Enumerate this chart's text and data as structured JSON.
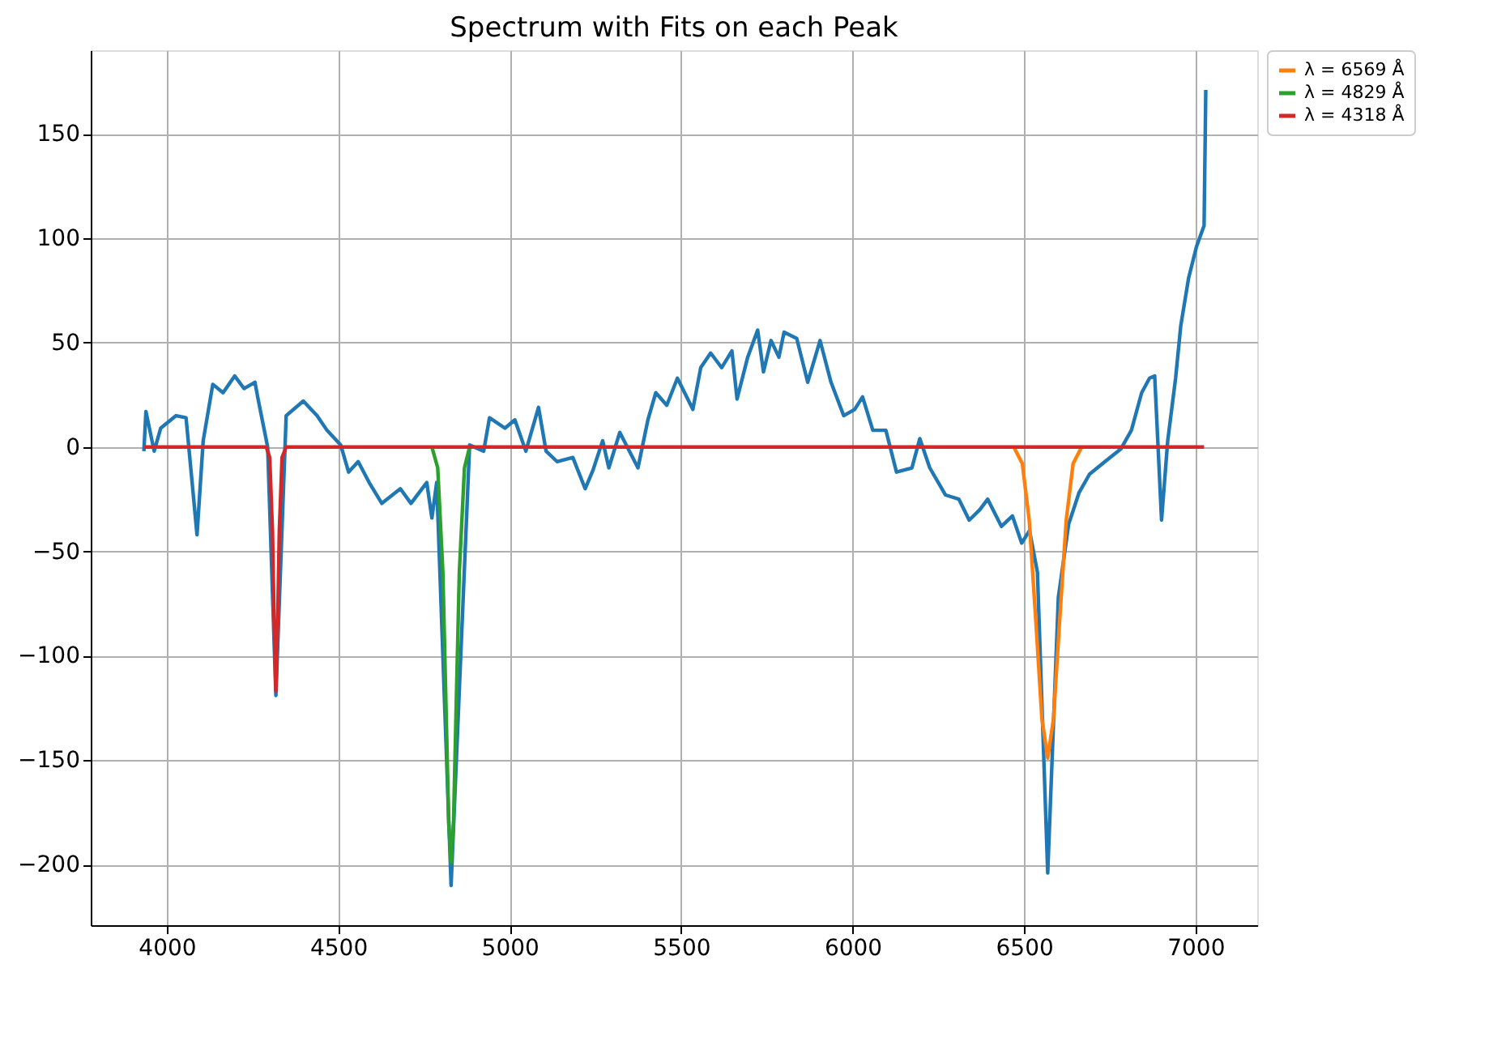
{
  "chart_data": {
    "type": "line",
    "title": "Spectrum with Fits on each Peak",
    "xlim": [
      3778,
      7180
    ],
    "xticks": [
      4000,
      4500,
      5000,
      5500,
      6000,
      6500,
      7000
    ],
    "ylim": [
      -229,
      190
    ],
    "yticks": [
      -200,
      -150,
      -100,
      -50,
      0,
      50,
      100,
      150
    ],
    "grid": true,
    "legend": "right",
    "marker": "none",
    "line_style": "solid",
    "series": [
      {
        "color": "#1f77b4",
        "x": [
          3933,
          3939,
          3963,
          3982,
          4027,
          4056,
          4088,
          4106,
          4134,
          4164,
          4198,
          4225,
          4257,
          4266,
          4294,
          4318,
          4348,
          4398,
          4438,
          4467,
          4507,
          4530,
          4558,
          4590,
          4627,
          4681,
          4712,
          4758,
          4773,
          4787,
          4829,
          4883,
          4924,
          4941,
          4986,
          5015,
          5047,
          5084,
          5106,
          5138,
          5184,
          5220,
          5243,
          5271,
          5289,
          5321,
          5374,
          5403,
          5426,
          5458,
          5489,
          5534,
          5557,
          5586,
          5618,
          5648,
          5663,
          5694,
          5723,
          5740,
          5762,
          5785,
          5800,
          5837,
          5869,
          5905,
          5937,
          5974,
          6006,
          6029,
          6059,
          6097,
          6128,
          6173,
          6196,
          6225,
          6271,
          6310,
          6340,
          6371,
          6394,
          6434,
          6466,
          6493,
          6516,
          6539,
          6569,
          6600,
          6630,
          6660,
          6691,
          6736,
          6782,
          6813,
          6843,
          6866,
          6881,
          6901,
          6919,
          6942,
          6957,
          6980,
          7003,
          7025,
          7030
        ],
        "values": [
          -2,
          17,
          -2,
          9,
          15,
          14,
          -42,
          3,
          30,
          26,
          34,
          28,
          31,
          23,
          0,
          -119,
          15,
          22,
          15,
          8,
          1,
          -12,
          -7,
          -17,
          -27,
          -20,
          -27,
          -17,
          -34,
          -17,
          -210,
          1,
          -2,
          14,
          9,
          13,
          -2,
          19,
          -2,
          -7,
          -5,
          -20,
          -11,
          3,
          -10,
          7,
          -10,
          13,
          26,
          20,
          33,
          18,
          38,
          45,
          38,
          46,
          23,
          43,
          56,
          36,
          51,
          43,
          55,
          52,
          31,
          51,
          31,
          15,
          18,
          24,
          8,
          8,
          -12,
          -10,
          4,
          -10,
          -23,
          -25,
          -35,
          -30,
          -25,
          -38,
          -33,
          -46,
          -40,
          -60,
          -204,
          -72,
          -37,
          -22,
          -13,
          -7,
          -1,
          8,
          26,
          33,
          34,
          -35,
          3,
          33,
          58,
          81,
          96,
          106,
          171
        ]
      },
      {
        "name": "λ = 6569 Å",
        "color": "#ff7f0e",
        "x": [
          6470,
          6495,
          6515,
          6535,
          6552,
          6569,
          6586,
          6603,
          6623,
          6643,
          6668
        ],
        "values": [
          0,
          -8,
          -35,
          -85,
          -130,
          -149,
          -130,
          -85,
          -35,
          -8,
          0
        ]
      },
      {
        "name": "λ = 4829 Å",
        "color": "#2ca02c",
        "x": [
          4773,
          4790,
          4805,
          4815,
          4822,
          4829,
          4836,
          4843,
          4853,
          4868,
          4883
        ],
        "values": [
          0,
          -10,
          -60,
          -130,
          -180,
          -199,
          -180,
          -130,
          -60,
          -10,
          0
        ]
      },
      {
        "name": "λ = 4318 Å",
        "color": "#d62728",
        "x": [
          3933,
          4290,
          4300,
          4308,
          4313,
          4318,
          4323,
          4328,
          4336,
          4348,
          7025
        ],
        "values": [
          0,
          0,
          -5,
          -40,
          -85,
          -117,
          -85,
          -40,
          -5,
          0,
          0
        ]
      }
    ]
  }
}
